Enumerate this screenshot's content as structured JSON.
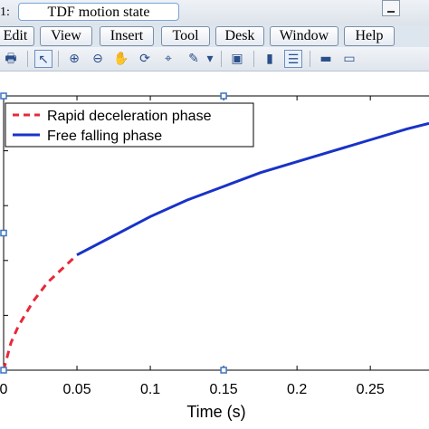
{
  "window": {
    "figure_number": "1:",
    "title": "TDF motion state"
  },
  "menu": [
    {
      "label": "Edit",
      "name": "menu-edit"
    },
    {
      "label": "View",
      "name": "menu-view"
    },
    {
      "label": "Insert",
      "name": "menu-insert"
    },
    {
      "label": "Tool",
      "name": "menu-tool"
    },
    {
      "label": "Desk",
      "name": "menu-desk"
    },
    {
      "label": "Window",
      "name": "menu-window"
    },
    {
      "label": "Help",
      "name": "menu-help"
    }
  ],
  "toolbar": [
    {
      "icon": "print-icon",
      "glyph": "🖶"
    },
    {
      "icon": "pointer-icon",
      "glyph": "↖"
    },
    {
      "icon": "zoom-in-icon",
      "glyph": "⊕"
    },
    {
      "icon": "zoom-out-icon",
      "glyph": "⊖"
    },
    {
      "icon": "pan-hand-icon",
      "glyph": "✋"
    },
    {
      "icon": "rotate-icon",
      "glyph": "⟳"
    },
    {
      "icon": "data-cursor-icon",
      "glyph": "⌖"
    },
    {
      "icon": "brush-icon",
      "glyph": "✎"
    },
    {
      "icon": "dropdown-icon",
      "glyph": "▾"
    },
    {
      "icon": "link-plot-icon",
      "glyph": "▣"
    },
    {
      "icon": "colorbar-icon",
      "glyph": "▮"
    },
    {
      "icon": "legend-icon",
      "glyph": "☰"
    },
    {
      "icon": "hide-tools-icon",
      "glyph": "▬"
    },
    {
      "icon": "dock-icon",
      "glyph": "▭"
    }
  ],
  "chart_data": {
    "type": "line",
    "xlabel": "Time (s)",
    "ylabel": "",
    "title": "",
    "xlim": [
      0,
      0.29
    ],
    "x_ticks": [
      0,
      0.05,
      0.1,
      0.15,
      0.2,
      0.25
    ],
    "x_tick_labels": [
      "0",
      "0.05",
      "0.1",
      "0.15",
      "0.2",
      "0.25"
    ],
    "ylim": [
      0,
      1
    ],
    "y_ticks": [
      0,
      0.2,
      0.4,
      0.6,
      0.8,
      1.0
    ],
    "grid": false,
    "legend_position": "top-left",
    "series": [
      {
        "name": "Rapid deceleration phase",
        "style": "dashed",
        "color": "#e8283a",
        "x": [
          0,
          0.005,
          0.01,
          0.02,
          0.03,
          0.04,
          0.05
        ],
        "y": [
          0,
          0.1,
          0.16,
          0.25,
          0.32,
          0.37,
          0.42
        ]
      },
      {
        "name": "Free falling phase",
        "style": "solid",
        "color": "#1932c8",
        "x": [
          0.05,
          0.075,
          0.1,
          0.125,
          0.15,
          0.175,
          0.2,
          0.225,
          0.25,
          0.275,
          0.29
        ],
        "y": [
          0.42,
          0.49,
          0.56,
          0.62,
          0.67,
          0.72,
          0.76,
          0.8,
          0.84,
          0.88,
          0.9
        ]
      }
    ]
  }
}
